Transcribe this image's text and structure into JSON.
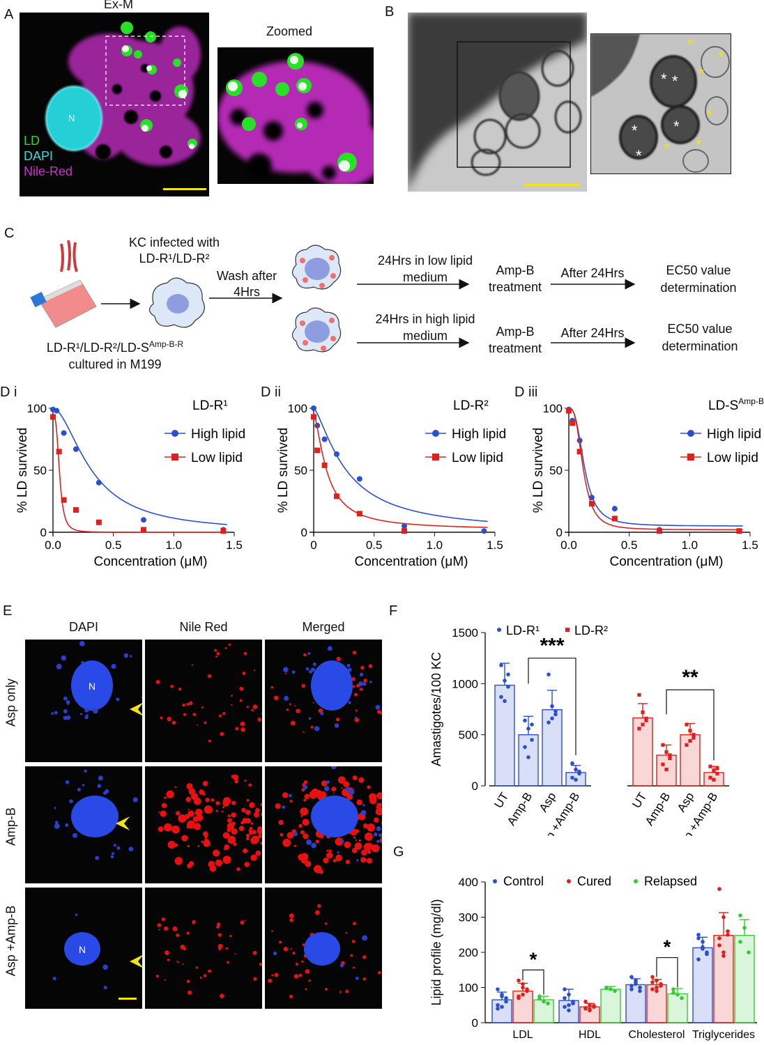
{
  "panels": {
    "A": {
      "letter": "A",
      "title": "Ex-M",
      "zoom_title": "Zoomed",
      "nucleus_label": "N",
      "legend": [
        {
          "label": "LD",
          "color": "#22dd22"
        },
        {
          "label": "DAPI",
          "color": "#33dddd"
        },
        {
          "label": "Nile-Red",
          "color": "#cc33cc"
        }
      ]
    },
    "B": {
      "letter": "B"
    },
    "C": {
      "letter": "C",
      "infected_label": "KC infected with\nLD-R¹/LD-R²",
      "wash_label": "Wash after\n4Hrs",
      "culture_label_1": "LD-R¹/LD-R²/LD-S",
      "culture_sup": "Amp-B-R",
      "culture_label_2": "cultured in M199",
      "low_medium": "24Hrs in low lipid\nmedium",
      "high_medium": "24Hrs in high lipid\nmedium",
      "treatment": "Amp-B\ntreatment",
      "after": "After 24Hrs",
      "ec50": "EC50 value\ndetermination"
    },
    "D": {
      "subplots": [
        {
          "letter": "D i",
          "title": "LD-R¹",
          "title_sup": ""
        },
        {
          "letter": "D ii",
          "title": "LD-R²",
          "title_sup": ""
        },
        {
          "letter": "D iii",
          "title": "LD-S",
          "title_sup": "Amp-B-R"
        }
      ],
      "ylabel": "% LD survived",
      "xlabel": "Concentration (μM)",
      "legend_high": "High lipid",
      "legend_low": "Low lipid"
    },
    "E": {
      "letter": "E",
      "columns": [
        "DAPI",
        "Nile Red",
        "Merged"
      ],
      "rows": [
        "Asp only",
        "Amp-B",
        "Asp +Amp-B"
      ],
      "nucleus_label": "N"
    },
    "F": {
      "letter": "F"
    },
    "G": {
      "letter": "G"
    }
  },
  "colors": {
    "blue": "#2b4fd1",
    "red": "#e0201c",
    "green": "#33cc33",
    "yellow": "#f2e21a"
  },
  "chart_data": [
    {
      "id": "Di",
      "type": "scatter",
      "title": "LD-R¹",
      "xlabel": "Concentration (μM)",
      "ylabel": "% LD survived",
      "xlim": [
        0,
        1.5
      ],
      "ylim": [
        0,
        100
      ],
      "xticks": [
        "0.0",
        "0.5",
        "1.0",
        "1.5"
      ],
      "yticks": [
        "0",
        "50",
        "100"
      ],
      "series": [
        {
          "name": "High lipid",
          "color": "#2b4fd1",
          "marker": "circle",
          "x": [
            0.0,
            0.03,
            0.09,
            0.19,
            0.38,
            0.75,
            1.41
          ],
          "y": [
            99,
            98,
            80,
            67,
            40,
            10,
            2
          ],
          "fit": {
            "top": 100,
            "bottom": 0,
            "ic50": 0.32,
            "hill": 1.8
          }
        },
        {
          "name": "Low lipid",
          "color": "#e0201c",
          "marker": "square",
          "x": [
            0.0,
            0.05,
            0.09,
            0.19,
            0.38,
            0.75,
            1.41
          ],
          "y": [
            93,
            65,
            26,
            18,
            8,
            2,
            1
          ],
          "fit": {
            "top": 94,
            "bottom": 0,
            "ic50": 0.055,
            "hill": 3.2
          }
        }
      ]
    },
    {
      "id": "Dii",
      "type": "scatter",
      "title": "LD-R²",
      "xlabel": "Concentration (μM)",
      "ylabel": "% LD survived",
      "xlim": [
        0,
        1.5
      ],
      "ylim": [
        0,
        100
      ],
      "xticks": [
        "0",
        "0.5",
        "1.0",
        "1.5"
      ],
      "yticks": [
        "0",
        "50",
        "100"
      ],
      "series": [
        {
          "name": "High lipid",
          "color": "#2b4fd1",
          "marker": "circle",
          "x": [
            0.0,
            0.03,
            0.09,
            0.19,
            0.38,
            0.75,
            1.41
          ],
          "y": [
            100,
            86,
            75,
            63,
            43,
            5,
            1
          ],
          "fit": {
            "top": 100,
            "bottom": 0,
            "ic50": 0.27,
            "hill": 1.4
          }
        },
        {
          "name": "Low lipid",
          "color": "#e0201c",
          "marker": "square",
          "x": [
            0.0,
            0.03,
            0.09,
            0.19,
            0.38,
            0.75
          ],
          "y": [
            93,
            66,
            54,
            29,
            15,
            1
          ],
          "fit": {
            "top": 96,
            "bottom": 2,
            "ic50": 0.11,
            "hill": 1.5
          }
        }
      ]
    },
    {
      "id": "Diii",
      "type": "scatter",
      "title": "LD-S Amp-B-R",
      "xlabel": "Concentration (μM)",
      "ylabel": "% LD survived",
      "xlim": [
        0,
        1.5
      ],
      "ylim": [
        0,
        100
      ],
      "xticks": [
        "0.0",
        "0.5",
        "1.0",
        "1.5"
      ],
      "yticks": [
        "0",
        "50",
        "100"
      ],
      "series": [
        {
          "name": "High lipid",
          "color": "#2b4fd1",
          "marker": "circle",
          "x": [
            0.0,
            0.03,
            0.09,
            0.19,
            0.38,
            0.75,
            1.41
          ],
          "y": [
            99,
            90,
            74,
            28,
            19,
            2,
            1
          ],
          "fit": {
            "top": 100,
            "bottom": 5,
            "ic50": 0.13,
            "hill": 2.8
          }
        },
        {
          "name": "Low lipid",
          "color": "#e0201c",
          "marker": "square",
          "x": [
            0.0,
            0.03,
            0.09,
            0.19,
            0.38,
            0.75,
            1.41
          ],
          "y": [
            98,
            88,
            65,
            23,
            11,
            1,
            1
          ],
          "fit": {
            "top": 100,
            "bottom": 2,
            "ic50": 0.12,
            "hill": 3.0
          }
        }
      ]
    },
    {
      "id": "F",
      "type": "bar",
      "ylabel": "Amastigotes/100 KC",
      "ylim": [
        0,
        1500
      ],
      "yticks": [
        "0",
        "500",
        "1000",
        "1500"
      ],
      "categories": [
        "UT",
        "Amp-B",
        "Asp",
        "Asp +Amp-B"
      ],
      "series": [
        {
          "name": "LD-R¹",
          "color": "#2b4fd1",
          "values": [
            985,
            500,
            745,
            130
          ],
          "errors": [
            215,
            180,
            190,
            70
          ],
          "points": [
            [
              1180,
              1030,
              970,
              870,
              830,
              1090
            ],
            [
              640,
              560,
              450,
              380,
              280,
              600
            ],
            [
              1090,
              780,
              700,
              620,
              660,
              730
            ],
            [
              220,
              160,
              120,
              80,
              60,
              140
            ]
          ]
        },
        {
          "name": "LD-R²",
          "color": "#e0201c",
          "values": [
            665,
            300,
            500,
            130
          ],
          "errors": [
            140,
            100,
            110,
            60
          ],
          "points": [
            [
              890,
              720,
              640,
              560,
              600,
              660
            ],
            [
              400,
              330,
              270,
              210,
              160,
              300
            ],
            [
              600,
              540,
              470,
              400,
              440,
              500
            ],
            [
              190,
              150,
              120,
              80,
              60,
              170
            ]
          ]
        }
      ],
      "significance": [
        {
          "series": "LD-R¹",
          "from": "Amp-B",
          "to": "Asp +Amp-B",
          "label": "***"
        },
        {
          "series": "LD-R²",
          "from": "Amp-B",
          "to": "Asp +Amp-B",
          "label": "**"
        }
      ]
    },
    {
      "id": "G",
      "type": "bar",
      "ylabel": "Lipid profile (mg/dl)",
      "ylim": [
        0,
        400
      ],
      "yticks": [
        "0",
        "100",
        "200",
        "300",
        "400"
      ],
      "categories": [
        "LDL",
        "HDL",
        "Cholesterol",
        "Triglycerides"
      ],
      "series": [
        {
          "name": "Control",
          "color": "#2b4fd1",
          "values": [
            65,
            63,
            108,
            213
          ],
          "errors": [
            22,
            32,
            17,
            30
          ],
          "points": [
            [
              95,
              75,
              60,
              50,
              45,
              70,
              40,
              80
            ],
            [
              95,
              80,
              60,
              45,
              35,
              55,
              70,
              50
            ],
            [
              130,
              115,
              100,
              95,
              110,
              90,
              105,
              120
            ],
            [
              250,
              230,
              200,
              180,
              215,
              195,
              240,
              210
            ]
          ]
        },
        {
          "name": "Cured",
          "color": "#e0201c",
          "values": [
            90,
            45,
            108,
            248
          ],
          "errors": [
            22,
            10,
            15,
            65
          ],
          "points": [
            [
              120,
              100,
              90,
              75,
              80,
              95,
              70,
              110
            ],
            [
              60,
              50,
              45,
              40,
              35,
              48,
              42,
              38
            ],
            [
              130,
              120,
              110,
              95,
              100,
              105,
              115,
              90
            ],
            [
              380,
              300,
              250,
              220,
              200,
              260,
              240,
              190
            ]
          ]
        },
        {
          "name": "Relapsed",
          "color": "#33cc33",
          "values": [
            65,
            95,
            82,
            248
          ],
          "errors": [
            10,
            8,
            15,
            45
          ],
          "points": [
            [
              75,
              60,
              55,
              68
            ],
            [
              100,
              95,
              90,
              98
            ],
            [
              95,
              80,
              70,
              85
            ],
            [
              305,
              270,
              200,
              230
            ]
          ]
        }
      ],
      "significance": [
        {
          "category": "LDL",
          "from": "Cured",
          "to": "Relapsed",
          "label": "*"
        },
        {
          "category": "Cholesterol",
          "from": "Cured",
          "to": "Relapsed",
          "label": "*"
        }
      ]
    }
  ]
}
